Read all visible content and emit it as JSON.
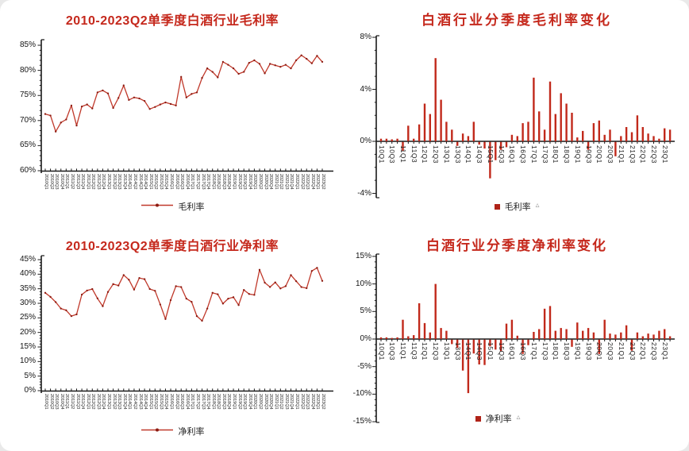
{
  "page": {
    "background": "#e9e9e9",
    "card_background": "#ffffff"
  },
  "colors": {
    "title": "#c5281c",
    "line": "#c0392b",
    "marker": "#8b1a10",
    "bar": "#c1291b",
    "axis": "#1a1a1a",
    "tick_label": "#222222"
  },
  "chart_data": [
    {
      "id": "gross-margin-line",
      "type": "line",
      "title": "2010-2023Q2单季度白酒行业毛利率",
      "legend": "毛利率",
      "ylim": [
        60,
        85
      ],
      "ytick_labels": [
        "85%",
        "80%",
        "75%",
        "70%",
        "65%",
        "60%"
      ],
      "categories": [
        "2010Q1",
        "2010Q2",
        "2010Q3",
        "2010Q4",
        "2011Q1",
        "2011Q2",
        "2011Q3",
        "2011Q4",
        "2012Q1",
        "2012Q2",
        "2012Q3",
        "2012Q4",
        "2013Q1",
        "2013Q2",
        "2013Q3",
        "2013Q4",
        "2014Q1",
        "2014Q2",
        "2014Q3",
        "2014Q4",
        "2015Q1",
        "2015Q2",
        "2015Q3",
        "2015Q4",
        "2016Q1",
        "2016Q2",
        "2016Q3",
        "2016Q4",
        "2017Q1",
        "2017Q2",
        "2017Q3",
        "2017Q4",
        "2018Q1",
        "2018Q2",
        "2018Q3",
        "2018Q4",
        "2019Q1",
        "2019Q2",
        "2019Q3",
        "2019Q4",
        "2020Q1",
        "2020Q2",
        "2020Q3",
        "2020Q4",
        "2021Q1",
        "2021Q2",
        "2021Q3",
        "2021Q4",
        "2022Q1",
        "2022Q2",
        "2022Q3",
        "2022Q4",
        "2023Q1",
        "2023Q2"
      ],
      "values": [
        71.3,
        71.0,
        67.8,
        69.6,
        70.2,
        73.0,
        69.0,
        72.8,
        73.2,
        72.4,
        75.6,
        76.0,
        75.4,
        72.5,
        74.5,
        77.0,
        74.1,
        74.6,
        74.4,
        73.9,
        72.3,
        72.7,
        73.2,
        73.6,
        73.3,
        73.0,
        78.7,
        74.6,
        75.3,
        75.6,
        78.5,
        80.4,
        79.7,
        78.6,
        81.7,
        81.1,
        80.4,
        79.3,
        79.7,
        81.5,
        82.0,
        81.3,
        79.4,
        81.3,
        81.0,
        80.7,
        81.1,
        80.4,
        82.0,
        83.0,
        82.3,
        81.4,
        82.9,
        81.7
      ]
    },
    {
      "id": "gross-margin-change-bar",
      "type": "bar",
      "title": "白酒行业分季度毛利率变化",
      "legend": "毛利率",
      "legend_suffix": "△",
      "ylim": [
        -4,
        8
      ],
      "ytick_labels": [
        "8%",
        "4%",
        "0%",
        "-4%"
      ],
      "ytick_values": [
        8,
        4,
        0,
        -4
      ],
      "xtick_labels": [
        "10Q1",
        "10Q3",
        "11Q1",
        "11Q3",
        "12Q1",
        "12Q3",
        "13Q1",
        "13Q3",
        "14Q1",
        "14Q3",
        "15Q1",
        "15Q3",
        "16Q1",
        "16Q3",
        "17Q1",
        "17Q3",
        "18Q1",
        "18Q3",
        "19Q1",
        "19Q3",
        "20Q1",
        "20Q3",
        "21Q1",
        "21Q3",
        "22Q1",
        "22Q3",
        "23Q1"
      ],
      "categories": [
        "10Q1",
        "10Q2",
        "10Q3",
        "10Q4",
        "11Q1",
        "11Q2",
        "11Q3",
        "11Q4",
        "12Q1",
        "12Q2",
        "12Q3",
        "12Q4",
        "13Q1",
        "13Q2",
        "13Q3",
        "13Q4",
        "14Q1",
        "14Q2",
        "14Q3",
        "14Q4",
        "15Q1",
        "15Q2",
        "15Q3",
        "15Q4",
        "16Q1",
        "16Q2",
        "16Q3",
        "16Q4",
        "17Q1",
        "17Q2",
        "17Q3",
        "17Q4",
        "18Q1",
        "18Q2",
        "18Q3",
        "18Q4",
        "19Q1",
        "19Q2",
        "19Q3",
        "19Q4",
        "20Q1",
        "20Q2",
        "20Q3",
        "20Q4",
        "21Q1",
        "21Q2",
        "21Q3",
        "21Q4",
        "22Q1",
        "22Q2",
        "22Q3",
        "22Q4",
        "23Q1",
        "23Q2"
      ],
      "values": [
        0.2,
        0.2,
        0.15,
        0.2,
        -0.7,
        1.2,
        0.2,
        1.3,
        2.9,
        2.1,
        6.4,
        3.2,
        1.5,
        0.9,
        -0.3,
        0.6,
        0.4,
        1.5,
        -0.2,
        -0.5,
        -2.8,
        -1.4,
        -0.6,
        -0.4,
        0.5,
        0.4,
        1.4,
        1.5,
        4.9,
        2.3,
        0.9,
        4.6,
        2.1,
        3.7,
        2.9,
        2.2,
        0.3,
        0.8,
        -0.6,
        1.4,
        1.6,
        0.5,
        0.9,
        -1.1,
        0.4,
        1.1,
        0.7,
        2.0,
        1.1,
        0.6,
        0.4,
        0.2,
        1.0,
        0.9
      ]
    },
    {
      "id": "net-margin-line",
      "type": "line",
      "title": "2010-2023Q2单季度白酒行业净利率",
      "legend": "净利率",
      "ylim": [
        0,
        45
      ],
      "ytick_labels": [
        "45%",
        "40%",
        "35%",
        "30%",
        "25%",
        "20%",
        "15%",
        "10%",
        "5%",
        "0%"
      ],
      "categories": [
        "2010Q1",
        "2010Q2",
        "2010Q3",
        "2010Q4",
        "2011Q1",
        "2011Q2",
        "2011Q3",
        "2011Q4",
        "2012Q1",
        "2012Q2",
        "2012Q3",
        "2012Q4",
        "2013Q1",
        "2013Q2",
        "2013Q3",
        "2013Q4",
        "2014Q1",
        "2014Q2",
        "2014Q3",
        "2014Q4",
        "2015Q1",
        "2015Q2",
        "2015Q3",
        "2015Q4",
        "2016Q1",
        "2016Q2",
        "2016Q3",
        "2016Q4",
        "2017Q1",
        "2017Q2",
        "2017Q3",
        "2017Q4",
        "2018Q1",
        "2018Q2",
        "2018Q3",
        "2018Q4",
        "2019Q1",
        "2019Q2",
        "2019Q3",
        "2019Q4",
        "2020Q1",
        "2020Q2",
        "2020Q3",
        "2020Q4",
        "2021Q1",
        "2021Q2",
        "2021Q3",
        "2021Q4",
        "2022Q1",
        "2022Q2",
        "2022Q3",
        "2022Q4",
        "2023Q1",
        "2023Q2"
      ],
      "values": [
        33.6,
        32.2,
        30.4,
        28.2,
        27.6,
        25.6,
        26.2,
        33.0,
        34.4,
        34.9,
        31.7,
        29.0,
        33.9,
        36.6,
        36.1,
        39.7,
        38.1,
        34.7,
        38.7,
        38.3,
        34.9,
        34.3,
        29.6,
        24.6,
        31.1,
        35.9,
        35.6,
        31.6,
        30.5,
        25.6,
        24.0,
        28.2,
        33.6,
        33.1,
        29.9,
        31.6,
        32.1,
        29.4,
        34.6,
        33.2,
        32.9,
        41.5,
        37.1,
        35.6,
        37.2,
        35.1,
        35.9,
        39.7,
        37.6,
        35.6,
        35.2,
        41.1,
        42.2,
        37.7
      ]
    },
    {
      "id": "net-margin-change-bar",
      "type": "bar",
      "title": "白酒行业分季度净利率变化",
      "legend": "净利率",
      "legend_suffix": "△",
      "ylim": [
        -15,
        15
      ],
      "ytick_labels": [
        "15%",
        "10%",
        "5%",
        "0%",
        "-5%",
        "-10%",
        "-15%"
      ],
      "ytick_values": [
        15,
        10,
        5,
        0,
        -5,
        -10,
        -15
      ],
      "xtick_labels": [
        "10Q1",
        "10Q3",
        "11Q1",
        "11Q3",
        "12Q1",
        "12Q3",
        "13Q1",
        "13Q3",
        "14Q1",
        "14Q3",
        "15Q1",
        "15Q3",
        "16Q1",
        "16Q3",
        "17Q1",
        "17Q3",
        "18Q1",
        "18Q3",
        "19Q1",
        "19Q3",
        "20Q1",
        "20Q3",
        "21Q1",
        "21Q3",
        "22Q1",
        "22Q3",
        "23Q1"
      ],
      "categories": [
        "10Q1",
        "10Q2",
        "10Q3",
        "10Q4",
        "11Q1",
        "11Q2",
        "11Q3",
        "11Q4",
        "12Q1",
        "12Q2",
        "12Q3",
        "12Q4",
        "13Q1",
        "13Q2",
        "13Q3",
        "13Q4",
        "14Q1",
        "14Q2",
        "14Q3",
        "14Q4",
        "15Q1",
        "15Q2",
        "15Q3",
        "15Q4",
        "16Q1",
        "16Q2",
        "16Q3",
        "16Q4",
        "17Q1",
        "17Q2",
        "17Q3",
        "17Q4",
        "18Q1",
        "18Q2",
        "18Q3",
        "18Q4",
        "19Q1",
        "19Q2",
        "19Q3",
        "19Q4",
        "20Q1",
        "20Q2",
        "20Q3",
        "20Q4",
        "21Q1",
        "21Q2",
        "21Q3",
        "21Q4",
        "22Q1",
        "22Q2",
        "22Q3",
        "22Q4",
        "23Q1",
        "23Q2"
      ],
      "values": [
        0.3,
        0.3,
        0.2,
        0.3,
        3.5,
        0.5,
        0.7,
        6.5,
        2.9,
        1.2,
        10.0,
        2.0,
        1.5,
        -0.8,
        -1.5,
        -5.6,
        -9.7,
        -2.5,
        -4.5,
        -4.6,
        -1.2,
        -1.8,
        -2.1,
        2.8,
        3.5,
        0.6,
        -2.6,
        -1.0,
        1.3,
        1.8,
        5.5,
        6.0,
        1.5,
        2.0,
        1.8,
        -1.3,
        3.0,
        1.5,
        2.0,
        1.2,
        -2.6,
        3.5,
        1.0,
        0.8,
        1.2,
        2.5,
        -2.0,
        1.2,
        0.5,
        1.0,
        0.8,
        1.5,
        1.8,
        0.5
      ]
    }
  ]
}
